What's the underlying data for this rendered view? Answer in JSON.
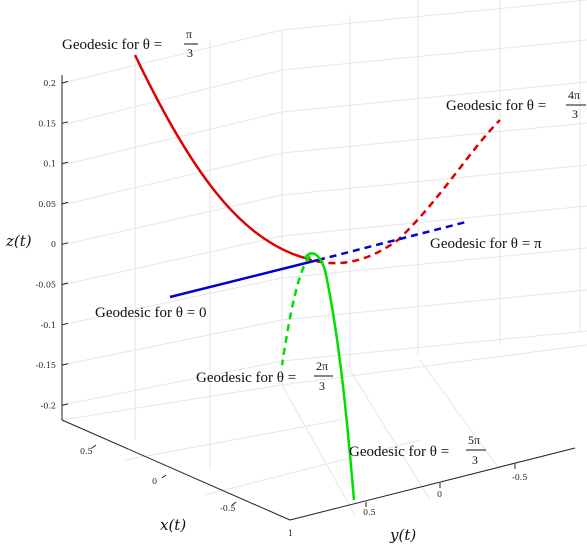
{
  "chart_data": {
    "type": "line",
    "projection": "3d",
    "xlabel": "x(t)",
    "ylabel": "y(t)",
    "zlabel": "z(t)",
    "grid": true,
    "z_ticks": [
      "0.2",
      "0.15",
      "0.1",
      "0.05",
      "0",
      "-0.05",
      "-0.1",
      "-0.15",
      "-0.2"
    ],
    "x_ticks": [
      "0.5",
      "0",
      "-0.5",
      "1"
    ],
    "y_ticks": [
      "0.5",
      "0",
      "-0.5"
    ],
    "series": [
      {
        "name": "Geodesic for θ = π/3",
        "label_prefix": "Geodesic for θ = ",
        "num": "π",
        "den": "3",
        "color": "#e00000",
        "style": "solid"
      },
      {
        "name": "Geodesic for θ = 4π/3",
        "label_prefix": "Geodesic for θ = ",
        "num": "4π",
        "den": "3",
        "color": "#e00000",
        "style": "dashed"
      },
      {
        "name": "Geodesic for θ = 0",
        "label_prefix": "Geodesic for θ = 0",
        "color": "#0000d0",
        "style": "solid"
      },
      {
        "name": "Geodesic for θ = π",
        "label_prefix": "Geodesic for θ = π",
        "color": "#0000d0",
        "style": "dashed"
      },
      {
        "name": "Geodesic for θ = 2π/3",
        "label_prefix": "Geodesic for θ = ",
        "num": "2π",
        "den": "3",
        "color": "#00e000",
        "style": "dashed"
      },
      {
        "name": "Geodesic for θ = 5π/3",
        "label_prefix": "Geodesic for θ = ",
        "num": "5π",
        "den": "3",
        "color": "#00e000",
        "style": "solid"
      }
    ]
  }
}
